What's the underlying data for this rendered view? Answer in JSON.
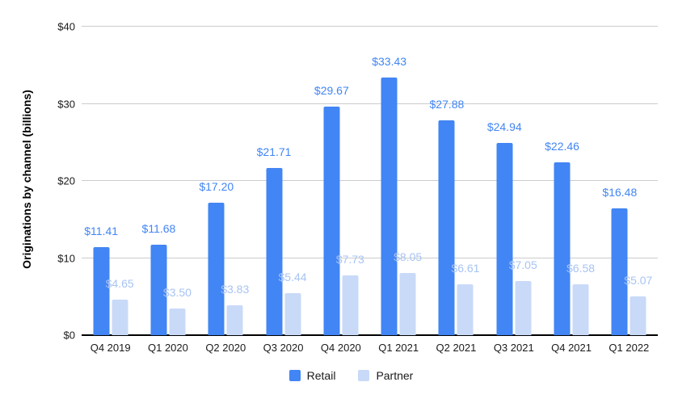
{
  "chart_data": {
    "type": "bar",
    "title": "",
    "xlabel": "",
    "ylabel": "Originations by channel (billions)",
    "categories": [
      "Q4 2019",
      "Q1 2020",
      "Q2 2020",
      "Q3 2020",
      "Q4 2020",
      "Q1 2021",
      "Q2 2021",
      "Q3 2021",
      "Q4 2021",
      "Q1 2022"
    ],
    "series": [
      {
        "name": "Retail",
        "color": "#4285F4",
        "label_color": "#4285F4",
        "values": [
          11.41,
          11.68,
          17.2,
          21.71,
          29.67,
          33.43,
          27.88,
          24.94,
          22.46,
          16.48
        ],
        "labels": [
          "$11.41",
          "$11.68",
          "$17.20",
          "$21.71",
          "$29.67",
          "$33.43",
          "$27.88",
          "$24.94",
          "$22.46",
          "$16.48"
        ]
      },
      {
        "name": "Partner",
        "color": "#C9DAF8",
        "label_color": "#A7C3F3",
        "values": [
          4.65,
          3.5,
          3.83,
          5.44,
          7.73,
          8.05,
          6.61,
          7.05,
          6.58,
          5.07
        ],
        "labels": [
          "$4.65",
          "$3.50",
          "$3.83",
          "$5.44",
          "$7.73",
          "$8.05",
          "$6.61",
          "$7.05",
          "$6.58",
          "$5.07"
        ]
      }
    ],
    "ylim": [
      0,
      40
    ],
    "y_tick_step": 10,
    "y_ticks": [
      "$0",
      "$10",
      "$20",
      "$30",
      "$40"
    ],
    "grid": true,
    "legend_position": "bottom",
    "gridline_color": "#cccccc",
    "axis_line_color": "#000000"
  }
}
